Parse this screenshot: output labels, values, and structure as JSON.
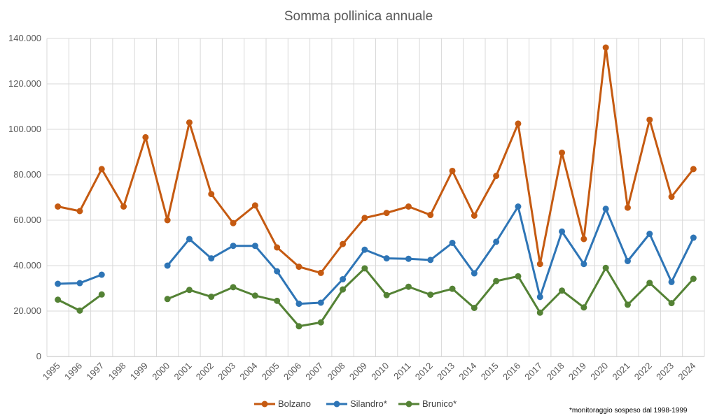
{
  "chart_data": {
    "type": "line",
    "title": "Somma pollinica annuale",
    "xlabel": "",
    "ylabel": "",
    "categories": [
      "1995",
      "1996",
      "1997",
      "1998",
      "1999",
      "2000",
      "2001",
      "2002",
      "2003",
      "2004",
      "2005",
      "2006",
      "2007",
      "2008",
      "2009",
      "2010",
      "2011",
      "2012",
      "2013",
      "2014",
      "2015",
      "2016",
      "2017",
      "2018",
      "2019",
      "2020",
      "2021",
      "2022",
      "2023",
      "2024"
    ],
    "ylim": [
      0,
      140000
    ],
    "yticks": [
      0,
      20000,
      40000,
      60000,
      80000,
      100000,
      120000,
      140000
    ],
    "ytick_labels": [
      "0",
      "20.000",
      "40.000",
      "60.000",
      "80.000",
      "100.000",
      "120.000",
      "140.000"
    ],
    "grid": true,
    "legend_position": "bottom",
    "series": [
      {
        "name": "Bolzano",
        "color": "#C55A11",
        "values": [
          66000,
          64000,
          82500,
          66000,
          96500,
          60000,
          103000,
          71500,
          58700,
          66500,
          48000,
          39500,
          36800,
          49500,
          61000,
          63200,
          66000,
          62300,
          81700,
          62000,
          79500,
          102500,
          40700,
          89700,
          51700,
          136000,
          65500,
          104200,
          70300,
          82500
        ]
      },
      {
        "name": "Silandro*",
        "color": "#2E75B6",
        "values": [
          32000,
          32300,
          36000,
          null,
          null,
          40000,
          51700,
          43200,
          48700,
          48700,
          37500,
          23200,
          23700,
          34000,
          47000,
          43200,
          43000,
          42500,
          50000,
          36600,
          50500,
          66000,
          26200,
          55000,
          40700,
          65000,
          42000,
          54000,
          32800,
          52300
        ]
      },
      {
        "name": "Brunico*",
        "color": "#548235",
        "values": [
          25000,
          20200,
          27300,
          null,
          null,
          25300,
          29300,
          26300,
          30500,
          26800,
          24500,
          13300,
          15000,
          29500,
          38800,
          27000,
          30700,
          27200,
          29800,
          21400,
          33200,
          35300,
          19300,
          29000,
          21600,
          39000,
          22800,
          32400,
          23500,
          34200
        ]
      }
    ],
    "note": "*monitoraggio sospeso dal 1998-1999"
  }
}
